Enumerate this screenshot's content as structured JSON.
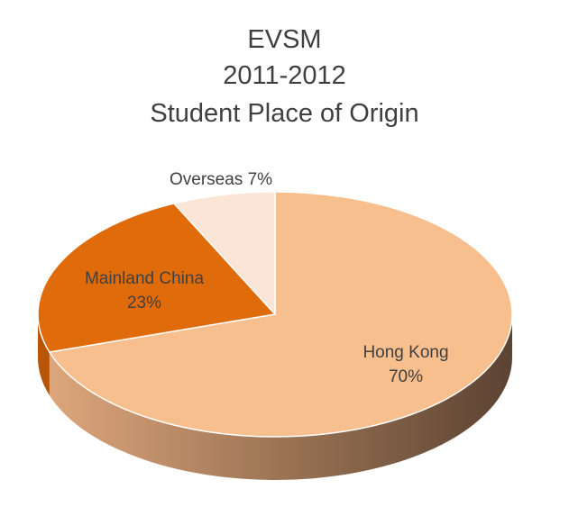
{
  "chart_data": {
    "type": "pie",
    "style": "3d",
    "title_lines": [
      "EVSM",
      "2011-2012",
      "Student Place of Origin"
    ],
    "slices": [
      {
        "label": "Hong Kong",
        "value": 70,
        "value_label": "70%",
        "color": "#F7BE8E",
        "side_color": "#C9946A"
      },
      {
        "label": "Mainland China",
        "value": 23,
        "value_label": "23%",
        "color": "#E06B0A",
        "side_color": "#B85507"
      },
      {
        "label": "Overseas",
        "value": 7,
        "value_label": "7%",
        "color": "#FAE5D7",
        "side_color": "#E0CBBB"
      }
    ],
    "legend": "none",
    "start_angle": "12 o'clock",
    "direction": "clockwise"
  }
}
